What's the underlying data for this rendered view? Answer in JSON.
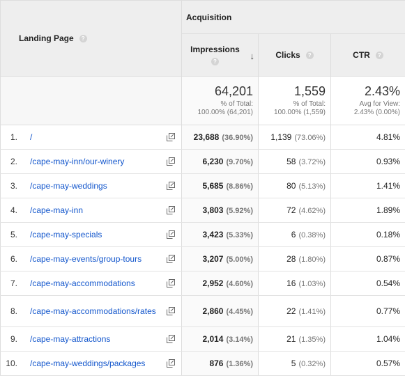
{
  "header": {
    "group_label": "Acquisition",
    "landing_page_label": "Landing Page",
    "impressions_label": "Impressions",
    "clicks_label": "Clicks",
    "ctr_label": "CTR",
    "help_glyph": "?"
  },
  "totals": {
    "impressions": {
      "value": "64,201",
      "note1": "% of Total:",
      "note2": "100.00% (64,201)"
    },
    "clicks": {
      "value": "1,559",
      "note1": "% of Total:",
      "note2": "100.00% (1,559)"
    },
    "ctr": {
      "value": "2.43%",
      "note1": "Avg for View:",
      "note2": "2.43% (0.00%)"
    }
  },
  "rows": [
    {
      "idx": "1.",
      "page": "/",
      "impressions": "23,688",
      "imp_pct": "(36.90%)",
      "clicks": "1,139",
      "clk_pct": "(73.06%)",
      "ctr": "4.81%"
    },
    {
      "idx": "2.",
      "page": "/cape-may-inn/our-winery",
      "impressions": "6,230",
      "imp_pct": "(9.70%)",
      "clicks": "58",
      "clk_pct": "(3.72%)",
      "ctr": "0.93%"
    },
    {
      "idx": "3.",
      "page": "/cape-may-weddings",
      "impressions": "5,685",
      "imp_pct": "(8.86%)",
      "clicks": "80",
      "clk_pct": "(5.13%)",
      "ctr": "1.41%"
    },
    {
      "idx": "4.",
      "page": "/cape-may-inn",
      "impressions": "3,803",
      "imp_pct": "(5.92%)",
      "clicks": "72",
      "clk_pct": "(4.62%)",
      "ctr": "1.89%"
    },
    {
      "idx": "5.",
      "page": "/cape-may-specials",
      "impressions": "3,423",
      "imp_pct": "(5.33%)",
      "clicks": "6",
      "clk_pct": "(0.38%)",
      "ctr": "0.18%"
    },
    {
      "idx": "6.",
      "page": "/cape-may-events/group-tours",
      "impressions": "3,207",
      "imp_pct": "(5.00%)",
      "clicks": "28",
      "clk_pct": "(1.80%)",
      "ctr": "0.87%"
    },
    {
      "idx": "7.",
      "page": "/cape-may-accommodations",
      "impressions": "2,952",
      "imp_pct": "(4.60%)",
      "clicks": "16",
      "clk_pct": "(1.03%)",
      "ctr": "0.54%"
    },
    {
      "idx": "8.",
      "page": "/cape-may-accommodations/rates",
      "impressions": "2,860",
      "imp_pct": "(4.45%)",
      "clicks": "22",
      "clk_pct": "(1.41%)",
      "ctr": "0.77%"
    },
    {
      "idx": "9.",
      "page": "/cape-may-attractions",
      "impressions": "2,014",
      "imp_pct": "(3.14%)",
      "clicks": "21",
      "clk_pct": "(1.35%)",
      "ctr": "1.04%"
    },
    {
      "idx": "10.",
      "page": "/cape-may-weddings/packages",
      "impressions": "876",
      "imp_pct": "(1.36%)",
      "clicks": "5",
      "clk_pct": "(0.32%)",
      "ctr": "0.57%"
    }
  ]
}
